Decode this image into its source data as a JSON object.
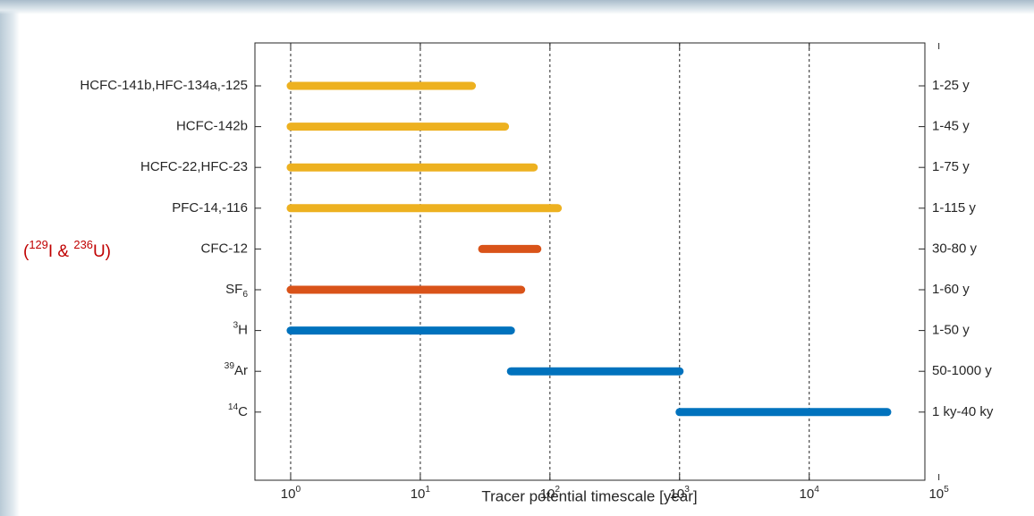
{
  "chart_data": {
    "type": "range-bar",
    "x_label": "Tracer potential timescale [year]",
    "annotation": [
      {
        "text": "("
      },
      {
        "text": "129",
        "sup": true
      },
      {
        "text": "I & "
      },
      {
        "text": "236",
        "sup": true
      },
      {
        "text": "U)"
      }
    ],
    "categories": [
      [
        {
          "text": "HCFC-141b,HFC-134a,-125"
        }
      ],
      [
        {
          "text": "HCFC-142b"
        }
      ],
      [
        {
          "text": "HCFC-22,HFC-23"
        }
      ],
      [
        {
          "text": "PFC-14,-116"
        }
      ],
      [
        {
          "text": "CFC-12"
        }
      ],
      [
        {
          "text": "SF"
        },
        {
          "text": "6",
          "sub": true
        }
      ],
      [
        {
          "text": "3",
          "sup": true
        },
        {
          "text": "H"
        }
      ],
      [
        {
          "text": "39",
          "sup": true
        },
        {
          "text": "Ar"
        }
      ],
      [
        {
          "text": "14",
          "sup": true
        },
        {
          "text": "C"
        }
      ]
    ],
    "range_labels": [
      "1-25 y",
      "1-45 y",
      "1-75 y",
      "1-115 y",
      "30-80 y",
      "1-60 y",
      "1-50 y",
      "50-1000 y",
      "1 ky-40 ky"
    ],
    "starts": [
      1,
      1,
      1,
      1,
      30,
      1,
      1,
      50,
      1000
    ],
    "ends": [
      25,
      45,
      75,
      115,
      80,
      60,
      50,
      1000,
      40000
    ],
    "colors": [
      "#EDB120",
      "#EDB120",
      "#EDB120",
      "#EDB120",
      "#D95319",
      "#D95319",
      "#0072BD",
      "#0072BD",
      "#0072BD"
    ],
    "log_x": true,
    "xlim": [
      0.53,
      78000
    ],
    "xticks": [
      {
        "value": 1,
        "label": "10",
        "exp": "0"
      },
      {
        "value": 10,
        "label": "10",
        "exp": "1"
      },
      {
        "value": 100,
        "label": "10",
        "exp": "2"
      },
      {
        "value": 1000,
        "label": "10",
        "exp": "3"
      },
      {
        "value": 10000,
        "label": "10",
        "exp": "4"
      },
      {
        "value": 100000,
        "label": "10",
        "exp": "5"
      }
    ],
    "grid": true
  }
}
